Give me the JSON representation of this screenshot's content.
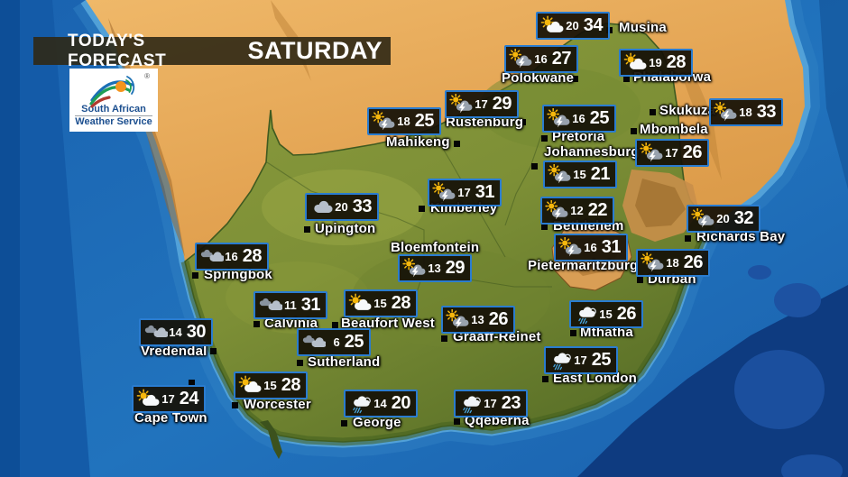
{
  "header": {
    "banner": "TODAY'S FORECAST",
    "day": "SATURDAY"
  },
  "logo": {
    "org_line1": "South African",
    "org_line2": "Weather Service",
    "registered": "®"
  },
  "colors": {
    "badge_border": "#2a7cd0",
    "badge_bg": "#16110a",
    "ocean": "#1e6cb5",
    "ocean_deep": "#0e3b80",
    "shelf": "#57a5da",
    "land_foreign": "#e4a655",
    "land_sa": "#7d8f36",
    "lesotho": "#d99e55",
    "sun": "#f6b70c",
    "rain_streak": "#49a5dc"
  },
  "icon_legend": {
    "partly-cloudy": "sun with white cloud",
    "sun-thunder": "sun with grey cloud and lightning",
    "cloudy": "single grey cloud",
    "cloudy-2": "two grey clouds",
    "rain": "cloud with rain streaks"
  },
  "stations": [
    {
      "name": "Musina",
      "min": "20",
      "max": "34",
      "icon": "partly-cloudy",
      "badge": [
        594,
        13
      ],
      "square": [
        672,
        30
      ],
      "label": [
        686,
        23
      ]
    },
    {
      "name": "Polokwane",
      "min": "16",
      "max": "27",
      "icon": "sun-thunder",
      "badge": [
        559,
        50
      ],
      "square": [
        634,
        84
      ],
      "label": [
        556,
        79
      ]
    },
    {
      "name": "Phalaborwa",
      "min": "19",
      "max": "28",
      "icon": "partly-cloudy",
      "badge": [
        686,
        54
      ],
      "square": [
        691,
        84
      ],
      "label": [
        702,
        78
      ]
    },
    {
      "name": "Rustenburg",
      "min": "17",
      "max": "29",
      "icon": "sun-thunder",
      "badge": [
        493,
        100
      ],
      "square": [
        576,
        132
      ],
      "label": [
        494,
        128
      ]
    },
    {
      "name": "Mahikeng",
      "min": "18",
      "max": "25",
      "icon": "sun-thunder",
      "badge": [
        407,
        119
      ],
      "square": [
        503,
        156
      ],
      "label": [
        428,
        150
      ]
    },
    {
      "name": "Pretoria",
      "min": "16",
      "max": "25",
      "icon": "sun-thunder",
      "badge": [
        601,
        116
      ],
      "square": [
        600,
        150
      ],
      "label": [
        612,
        144
      ]
    },
    {
      "name": "Skukuza",
      "min": "18",
      "max": "33",
      "icon": "sun-thunder",
      "badge": [
        786,
        109
      ],
      "square": [
        720,
        121
      ],
      "label": [
        731,
        115
      ]
    },
    {
      "name": "Mbombela",
      "min": "17",
      "max": "26",
      "icon": "sun-thunder",
      "badge": [
        704,
        154
      ],
      "square": [
        699,
        142
      ],
      "label": [
        709,
        136
      ]
    },
    {
      "name": "Johannesburg",
      "min": "15",
      "max": "21",
      "icon": "sun-thunder",
      "badge": [
        602,
        178
      ],
      "square": [
        589,
        181
      ],
      "label": [
        603,
        161
      ]
    },
    {
      "name": "Kimberley",
      "min": "17",
      "max": "31",
      "icon": "sun-thunder",
      "badge": [
        474,
        198
      ],
      "square": [
        464,
        228
      ],
      "label": [
        477,
        223
      ]
    },
    {
      "name": "Bethlehem",
      "min": "12",
      "max": "22",
      "icon": "sun-thunder",
      "badge": [
        599,
        218
      ],
      "square": [
        600,
        248
      ],
      "label": [
        613,
        243
      ]
    },
    {
      "name": "Upington",
      "min": "20",
      "max": "33",
      "icon": "cloudy",
      "badge": [
        338,
        214
      ],
      "square": [
        337,
        251
      ],
      "label": [
        349,
        246
      ]
    },
    {
      "name": "Bloemfontein",
      "min": "13",
      "max": "29",
      "icon": "sun-thunder",
      "badge": [
        441,
        282
      ],
      "square": [
        519,
        273
      ],
      "label": [
        433,
        267
      ]
    },
    {
      "name": "Pietermaritzburg",
      "min": "16",
      "max": "31",
      "icon": "sun-thunder",
      "badge": [
        614,
        259
      ],
      "square": [
        701,
        292
      ],
      "label": [
        585,
        287
      ]
    },
    {
      "name": "Richards Bay",
      "min": "20",
      "max": "32",
      "icon": "sun-thunder",
      "badge": [
        761,
        227
      ],
      "square": [
        759,
        261
      ],
      "label": [
        772,
        255
      ]
    },
    {
      "name": "Durban",
      "min": "18",
      "max": "26",
      "icon": "sun-thunder",
      "badge": [
        705,
        276
      ],
      "square": [
        706,
        307
      ],
      "label": [
        718,
        302
      ]
    },
    {
      "name": "Springbok",
      "min": "16",
      "max": "28",
      "icon": "cloudy-2",
      "badge": [
        216,
        269
      ],
      "square": [
        213,
        302
      ],
      "label": [
        226,
        297
      ]
    },
    {
      "name": "Calvinia",
      "min": "11",
      "max": "31",
      "icon": "cloudy-2",
      "badge": [
        281,
        323
      ],
      "square": [
        281,
        356
      ],
      "label": [
        293,
        351
      ]
    },
    {
      "name": "Beaufort West",
      "min": "15",
      "max": "28",
      "icon": "partly-cloudy",
      "badge": [
        381,
        321
      ],
      "square": [
        368,
        357
      ],
      "label": [
        378,
        351
      ]
    },
    {
      "name": "Vredendal",
      "min": "14",
      "max": "30",
      "icon": "cloudy-2",
      "badge": [
        154,
        353
      ],
      "square": [
        233,
        386
      ],
      "label": [
        156,
        382
      ]
    },
    {
      "name": "Sutherland",
      "min": "6",
      "max": "25",
      "icon": "cloudy-2",
      "badge": [
        329,
        364
      ],
      "square": [
        329,
        399
      ],
      "label": [
        341,
        394
      ]
    },
    {
      "name": "Graaff-Reinet",
      "min": "13",
      "max": "26",
      "icon": "sun-thunder",
      "badge": [
        489,
        339
      ],
      "square": [
        489,
        372
      ],
      "label": [
        502,
        366
      ]
    },
    {
      "name": "Mthatha",
      "min": "15",
      "max": "26",
      "icon": "rain",
      "badge": [
        631,
        333
      ],
      "square": [
        632,
        366
      ],
      "label": [
        643,
        361
      ]
    },
    {
      "name": "East London",
      "min": "17",
      "max": "25",
      "icon": "rain",
      "badge": [
        603,
        384
      ],
      "square": [
        601,
        417
      ],
      "label": [
        613,
        412
      ]
    },
    {
      "name": "Cape Town",
      "min": "17",
      "max": "24",
      "icon": "partly-cloudy",
      "badge": [
        146,
        427
      ],
      "square": [
        209,
        421
      ],
      "label": [
        149,
        456
      ]
    },
    {
      "name": "Worcester",
      "min": "15",
      "max": "28",
      "icon": "partly-cloudy",
      "badge": [
        259,
        412
      ],
      "square": [
        257,
        446
      ],
      "label": [
        270,
        441
      ]
    },
    {
      "name": "George",
      "min": "14",
      "max": "20",
      "icon": "rain",
      "badge": [
        381,
        432
      ],
      "square": [
        378,
        466
      ],
      "label": [
        391,
        461
      ]
    },
    {
      "name": "Qqeberha",
      "min": "17",
      "max": "23",
      "icon": "rain",
      "badge": [
        503,
        432
      ],
      "square": [
        503,
        464
      ],
      "label": [
        515,
        459
      ]
    }
  ]
}
